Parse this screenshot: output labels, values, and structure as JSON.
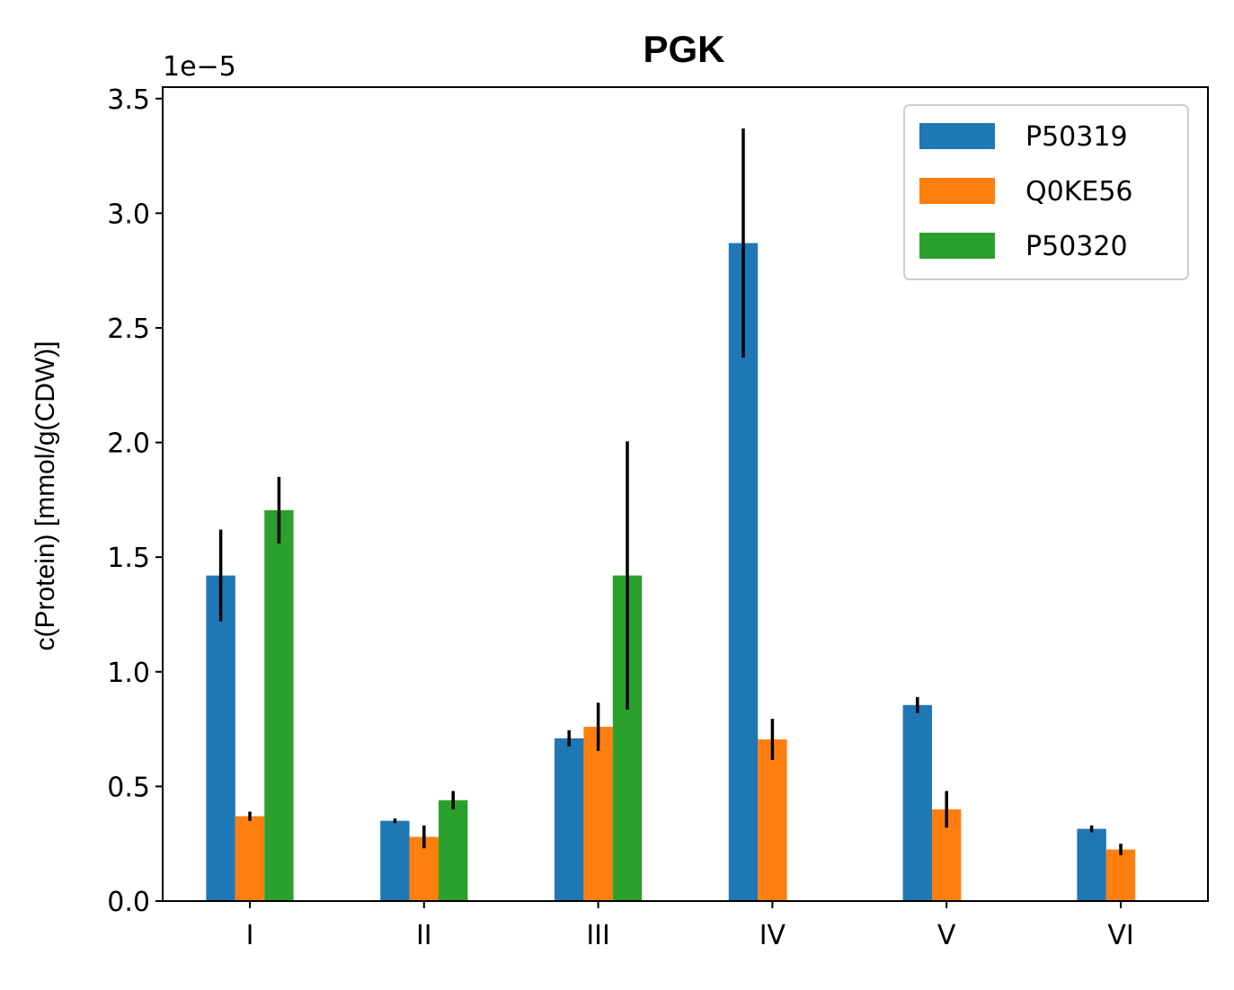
{
  "chart_data": {
    "type": "bar",
    "title": "PGK",
    "ylabel": "c(Protein) [mmol/g(CDW)]",
    "xlabel": "",
    "y_scale_label": "1e−5",
    "y_multiplier": 1e-05,
    "ylim": [
      0,
      3.55
    ],
    "yticks": [
      "0.0",
      "0.5",
      "1.0",
      "1.5",
      "2.0",
      "2.5",
      "3.0",
      "3.5"
    ],
    "categories": [
      "I",
      "II",
      "III",
      "IV",
      "V",
      "VI"
    ],
    "series": [
      {
        "name": "P50319",
        "color": "#1f77b4",
        "values": [
          1.42,
          0.35,
          0.71,
          2.87,
          0.855,
          0.315
        ],
        "errors": [
          0.2,
          0.01,
          0.035,
          0.5,
          0.035,
          0.015
        ]
      },
      {
        "name": "Q0KE56",
        "color": "#ff7f0e",
        "values": [
          0.37,
          0.28,
          0.76,
          0.705,
          0.4,
          0.225
        ],
        "errors": [
          0.02,
          0.05,
          0.105,
          0.09,
          0.08,
          0.025
        ]
      },
      {
        "name": "P50320",
        "color": "#2ca02c",
        "values": [
          1.705,
          0.44,
          1.42,
          null,
          null,
          null
        ],
        "errors": [
          0.145,
          0.04,
          0.585,
          null,
          null,
          null
        ]
      }
    ],
    "legend_position": "top-right",
    "grid": false
  }
}
